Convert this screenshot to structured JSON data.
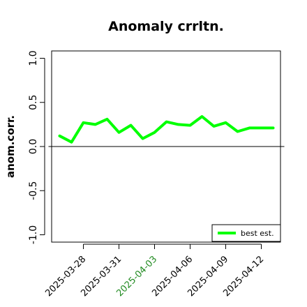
{
  "chart_data": {
    "type": "line",
    "title": "Anomaly crrltn.",
    "xlabel": "",
    "ylabel": "anom.corr.",
    "ylim": [
      -1.0,
      1.0
    ],
    "yticks": [
      "-1.0",
      "-0.5",
      "0.0",
      "0.5",
      "1.0"
    ],
    "xticks": [
      "2025-03-28",
      "2025-03-31",
      "2025-04-03",
      "2025-04-06",
      "2025-04-09",
      "2025-04-12"
    ],
    "highlight_tick": "2025-04-03",
    "highlight_color": "#228b22",
    "reference_line": 0.0,
    "grid": false,
    "legend_position": "bottom-right",
    "series": [
      {
        "name": "best est.",
        "color": "#00ff00",
        "x": [
          "2025-03-26",
          "2025-03-27",
          "2025-03-28",
          "2025-03-29",
          "2025-03-30",
          "2025-03-31",
          "2025-04-01",
          "2025-04-02",
          "2025-04-03",
          "2025-04-04",
          "2025-04-05",
          "2025-04-06",
          "2025-04-07",
          "2025-04-08",
          "2025-04-09",
          "2025-04-10",
          "2025-04-11",
          "2025-04-12",
          "2025-04-13"
        ],
        "values": [
          0.12,
          0.05,
          0.27,
          0.25,
          0.31,
          0.16,
          0.24,
          0.09,
          0.16,
          0.28,
          0.25,
          0.24,
          0.34,
          0.23,
          0.27,
          0.17,
          0.21,
          0.21,
          0.21
        ]
      }
    ]
  }
}
